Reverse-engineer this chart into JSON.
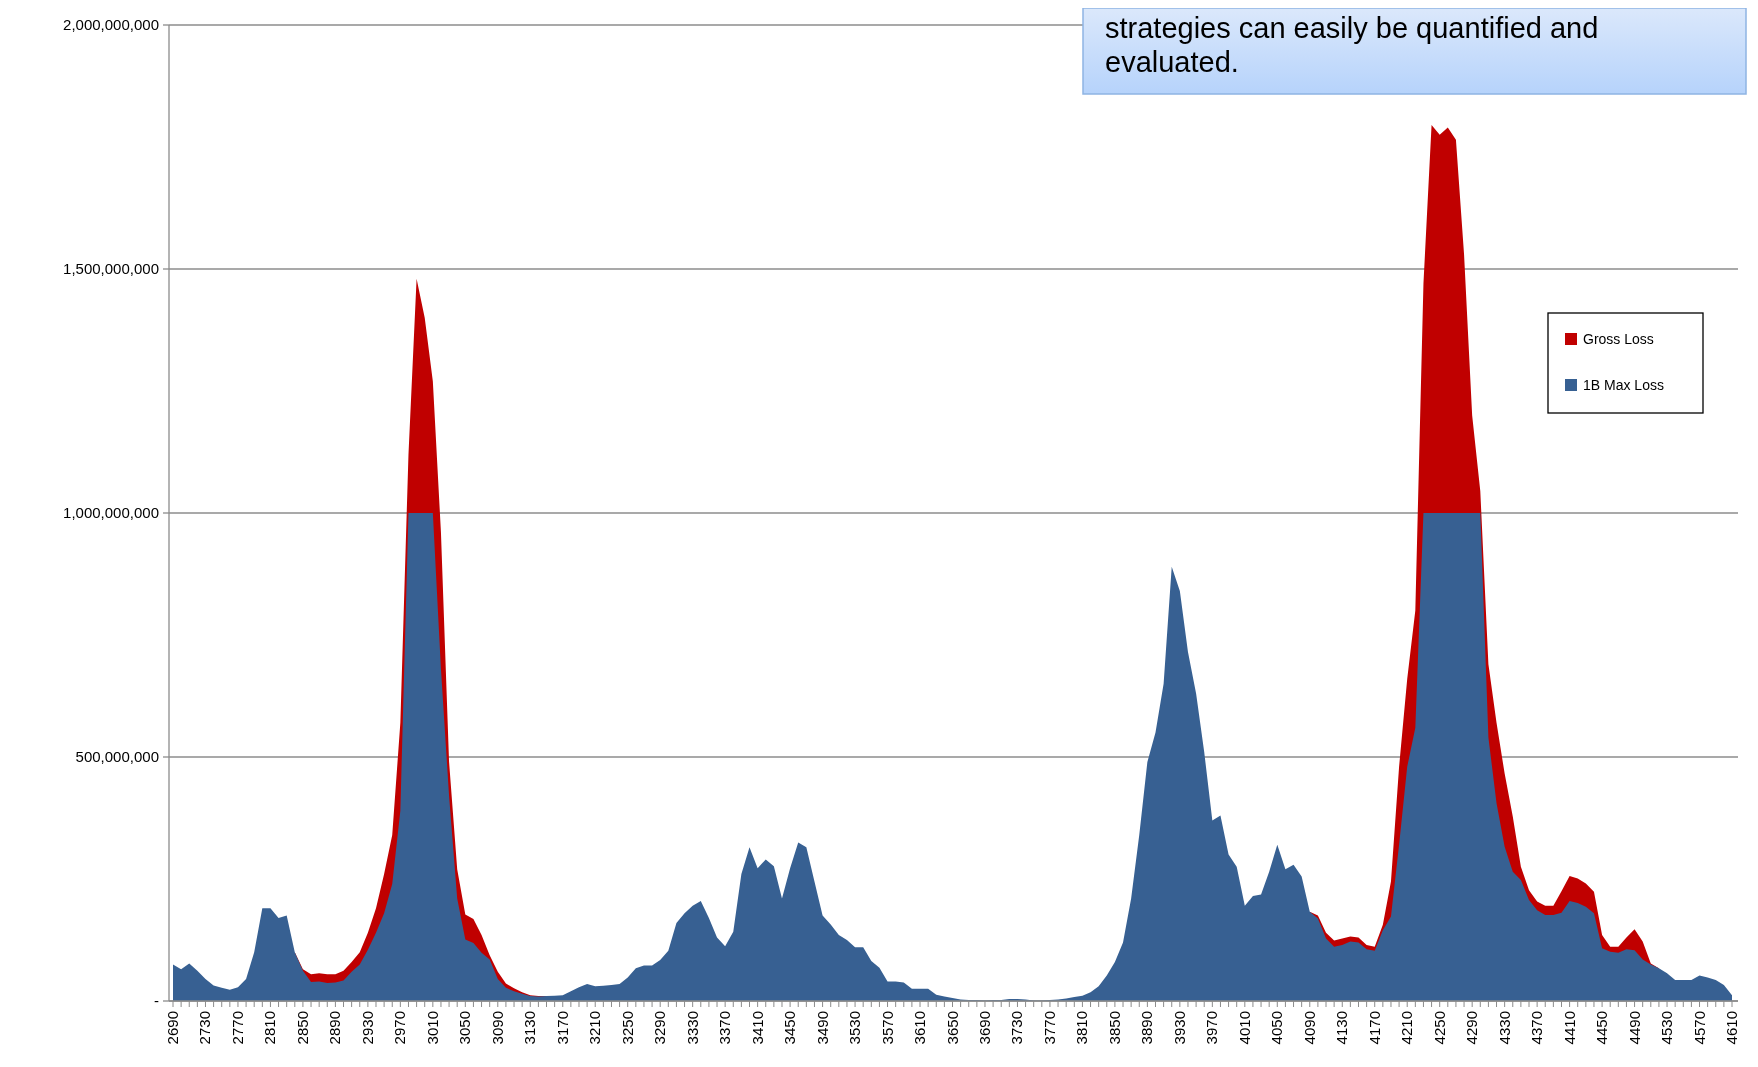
{
  "chart_data": {
    "type": "area",
    "categories": [
      "2690",
      null,
      null,
      null,
      "2730",
      null,
      null,
      null,
      "2770",
      null,
      null,
      null,
      "2810",
      null,
      null,
      null,
      "2850",
      null,
      null,
      null,
      "2890",
      null,
      null,
      null,
      "2930",
      null,
      null,
      null,
      "2970",
      null,
      null,
      null,
      "3010",
      null,
      null,
      null,
      "3050",
      null,
      null,
      null,
      "3090",
      null,
      null,
      null,
      "3130",
      null,
      null,
      null,
      "3170",
      null,
      null,
      null,
      "3210",
      null,
      null,
      null,
      "3250",
      null,
      null,
      null,
      "3290",
      null,
      null,
      null,
      "3330",
      null,
      null,
      null,
      "3370",
      null,
      null,
      null,
      "3410",
      null,
      null,
      null,
      "3450",
      null,
      null,
      null,
      "3490",
      null,
      null,
      null,
      "3530",
      null,
      null,
      null,
      "3570",
      null,
      null,
      null,
      "3610",
      null,
      null,
      null,
      "3650",
      null,
      null,
      null,
      "3690",
      null,
      null,
      null,
      "3730",
      null,
      null,
      null,
      "3770",
      null,
      null,
      null,
      "3810",
      null,
      null,
      null,
      "3850",
      null,
      null,
      null,
      "3890",
      null,
      null,
      null,
      "3930",
      null,
      null,
      null,
      "3970",
      null,
      null,
      null,
      "4010",
      null,
      null,
      null,
      "4050",
      null,
      null,
      null,
      "4090",
      null,
      null,
      null,
      "4130",
      null,
      null,
      null,
      "4170",
      null,
      null,
      null,
      "4210",
      null,
      null,
      null,
      "4250",
      null,
      null,
      null,
      "4290",
      null,
      null,
      null,
      "4330",
      null,
      null,
      null,
      "4370",
      null,
      null,
      null,
      "4410",
      null,
      null,
      null,
      "4450",
      null,
      null,
      null,
      "4490",
      null,
      null,
      null,
      "4530",
      null,
      null,
      null,
      "4570",
      null,
      null,
      null,
      "4610"
    ],
    "series": [
      {
        "name": "Gross Loss",
        "color": "#c00000",
        "values": [
          null,
          null,
          null,
          null,
          null,
          null,
          null,
          null,
          null,
          null,
          null,
          null,
          null,
          null,
          null,
          100000000,
          65000000,
          55000000,
          57000000,
          55000000,
          55000000,
          62000000,
          80000000,
          100000000,
          140000000,
          190000000,
          260000000,
          340000000,
          570000000,
          1120000000,
          1480000000,
          1400000000,
          1270000000,
          960000000,
          490000000,
          270000000,
          177000000,
          168000000,
          135000000,
          94000000,
          60000000,
          36000000,
          26000000,
          18000000,
          12000000,
          10000000,
          10000000,
          null,
          null,
          null,
          null,
          null,
          null,
          null,
          null,
          null,
          null,
          null,
          null,
          null,
          null,
          null,
          null,
          null,
          null,
          null,
          null,
          null,
          null,
          null,
          null,
          null,
          null,
          null,
          null,
          null,
          null,
          null,
          null,
          null,
          null,
          null,
          null,
          null,
          null,
          null,
          null,
          null,
          null,
          null,
          null,
          null,
          null,
          null,
          null,
          null,
          null,
          null,
          null,
          null,
          null,
          null,
          null,
          null,
          null,
          null,
          null,
          null,
          null,
          null,
          null,
          null,
          null,
          null,
          null,
          null,
          null,
          null,
          null,
          null,
          null,
          null,
          null,
          null,
          null,
          null,
          null,
          null,
          null,
          null,
          null,
          null,
          null,
          null,
          null,
          null,
          null,
          null,
          null,
          null,
          183000000,
          175000000,
          140000000,
          124000000,
          128000000,
          132000000,
          130000000,
          115000000,
          111000000,
          156000000,
          245000000,
          480000000,
          660000000,
          800000000,
          1470000000,
          1795000000,
          1775000000,
          1790000000,
          1765000000,
          1530000000,
          1200000000,
          1045000000,
          690000000,
          570000000,
          466000000,
          378000000,
          275000000,
          227000000,
          204000000,
          195000000,
          195000000,
          225000000,
          256000000,
          251000000,
          241000000,
          224000000,
          135000000,
          111000000,
          111000000,
          130000000,
          147000000,
          122000000,
          77000000,
          67000000,
          null,
          null,
          null,
          null,
          null,
          null,
          null,
          null,
          null
        ]
      },
      {
        "name": "1B Max Loss",
        "color": "#376092",
        "values": [
          75000000,
          65000000,
          77000000,
          62000000,
          45000000,
          32000000,
          27000000,
          23000000,
          28000000,
          45000000,
          100000000,
          190000000,
          190000000,
          170000000,
          175000000,
          100000000,
          62000000,
          39000000,
          40000000,
          37000000,
          38000000,
          42000000,
          60000000,
          75000000,
          105000000,
          140000000,
          180000000,
          240000000,
          390000000,
          1000000000,
          1000000000,
          1000000000,
          1000000000,
          680000000,
          420000000,
          210000000,
          126000000,
          119000000,
          99000000,
          85000000,
          45000000,
          27000000,
          20000000,
          15000000,
          10000000,
          9000000,
          10000000,
          11000000,
          12000000,
          20000000,
          28000000,
          35000000,
          30000000,
          31000000,
          33000000,
          35000000,
          48000000,
          67000000,
          73000000,
          73000000,
          84000000,
          103000000,
          160000000,
          180000000,
          195000000,
          205000000,
          170000000,
          130000000,
          112000000,
          142000000,
          260000000,
          315000000,
          272000000,
          290000000,
          276000000,
          210000000,
          272000000,
          325000000,
          315000000,
          245000000,
          175000000,
          157000000,
          135000000,
          125000000,
          110000000,
          110000000,
          82000000,
          68000000,
          40000000,
          40000000,
          38000000,
          25000000,
          25000000,
          25000000,
          13000000,
          9000000,
          6000000,
          3000000,
          2000000,
          2000000,
          1000000,
          2000000,
          2000000,
          4000000,
          4000000,
          3000000,
          1000000,
          1000000,
          2000000,
          3000000,
          5000000,
          8000000,
          11000000,
          18000000,
          30000000,
          52000000,
          80000000,
          120000000,
          210000000,
          340000000,
          490000000,
          550000000,
          650000000,
          890000000,
          840000000,
          715000000,
          630000000,
          510000000,
          370000000,
          380000000,
          300000000,
          275000000,
          195000000,
          215000000,
          218000000,
          265000000,
          320000000,
          270000000,
          279000000,
          255000000,
          183000000,
          169000000,
          128000000,
          111000000,
          115000000,
          122000000,
          120000000,
          106000000,
          103000000,
          145000000,
          173000000,
          320000000,
          480000000,
          560000000,
          1000000000,
          1000000000,
          1000000000,
          1000000000,
          1000000000,
          1000000000,
          1000000000,
          1000000000,
          540000000,
          405000000,
          316000000,
          265000000,
          248000000,
          207000000,
          186000000,
          176000000,
          176000000,
          181000000,
          205000000,
          201000000,
          193000000,
          180000000,
          108000000,
          101000000,
          99000000,
          106000000,
          104000000,
          85000000,
          75000000,
          67000000,
          57000000,
          43000000,
          43000000,
          43000000,
          52000000,
          48000000,
          43000000,
          33000000,
          12000000
        ]
      }
    ],
    "ylim": [
      0,
      2000000000
    ],
    "yticks": [
      {
        "value": 0,
        "label": "-"
      },
      {
        "value": 500000000,
        "label": "500,000,000"
      },
      {
        "value": 1000000000,
        "label": "1,000,000,000"
      },
      {
        "value": 1500000000,
        "label": "1,500,000,000"
      },
      {
        "value": 2000000000,
        "label": "2,000,000,000"
      }
    ],
    "grid": "y",
    "legend": "right",
    "annotations": [
      "strategies can easily be quantified and evaluated."
    ]
  }
}
